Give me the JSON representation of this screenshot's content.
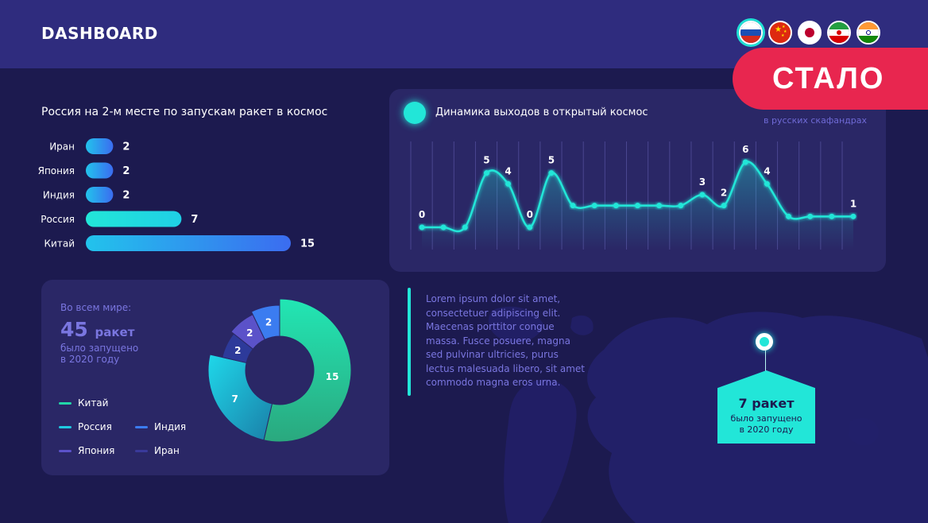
{
  "header": {
    "title": "DASHBOARD",
    "flags": [
      {
        "name": "russia-flag-icon",
        "active": true
      },
      {
        "name": "china-flag-icon",
        "active": false
      },
      {
        "name": "japan-flag-icon",
        "active": false
      },
      {
        "name": "iran-flag-icon",
        "active": false
      },
      {
        "name": "india-flag-icon",
        "active": false
      }
    ],
    "badge": "СТАЛО"
  },
  "colors": {
    "background": "#1c1a4f",
    "header": "#2f2c7e",
    "panel": "#2a2766",
    "accent_teal": "#22e6d8",
    "accent_blue": "#3b7cf0",
    "badge_red": "#e8264f",
    "muted_text": "#7a76e0"
  },
  "bar_section": {
    "title": "Россия на 2-м месте по запускам ракет в космос"
  },
  "line_section": {
    "title": "Динамика выходов в открытый космос",
    "subtitle_partial": "в русских скафандрах"
  },
  "donut_section": {
    "label": "Во всем мире:",
    "count": "45",
    "unit": "ракет",
    "desc_line1": "было запущено",
    "desc_line2": "в 2020 году",
    "legend": [
      "Китай",
      "Россия",
      "Индия",
      "Япония",
      "Иран"
    ]
  },
  "lorem": "Lorem ipsum dolor sit amet, consectetuer adipiscing elit. Maecenas porttitor congue massa. Fusce posuere, magna sed pulvinar ultricies, purus lectus malesuada libero, sit amet commodo magna eros urna.",
  "callout": {
    "count": "7 ракет",
    "desc_line1": "было запущено",
    "desc_line2": "в 2020 году"
  },
  "chart_data": [
    {
      "type": "bar",
      "orientation": "horizontal",
      "title": "Россия на 2-м месте по запускам ракет в космос",
      "categories": [
        "Иран",
        "Япония",
        "Индия",
        "Россия",
        "Китай"
      ],
      "values": [
        2,
        2,
        2,
        7,
        15
      ],
      "colors": [
        "#3b7cf0",
        "#3b7cf0",
        "#3b7cf0",
        "#22e6d8",
        "#3b7cf0"
      ]
    },
    {
      "type": "line",
      "title": "Динамика выходов в открытый космос",
      "x": [
        1,
        2,
        3,
        4,
        5,
        6,
        7,
        8,
        9,
        10,
        11,
        12,
        13,
        14,
        15,
        16,
        17,
        18,
        19,
        20,
        21
      ],
      "values": [
        0,
        0,
        0,
        5,
        4,
        0,
        5,
        2,
        2,
        2,
        2,
        2,
        2,
        3,
        2,
        6,
        4,
        1,
        1,
        1,
        1
      ],
      "labels": [
        "0",
        "",
        "",
        "5",
        "4",
        "0",
        "5",
        "",
        "",
        "",
        "",
        "",
        "",
        "3",
        "2",
        "6",
        "4",
        "",
        "",
        "",
        "1"
      ],
      "ylim": [
        0,
        6
      ],
      "grid": true
    },
    {
      "type": "pie",
      "style": "donut",
      "categories": [
        "Китай",
        "Россия",
        "Индия",
        "Япония",
        "Иран"
      ],
      "values": [
        15,
        7,
        2,
        2,
        2
      ],
      "labels": [
        "15",
        "7",
        "2",
        "2",
        "2"
      ],
      "colors": [
        "#22d6a8",
        "#1fc9e0",
        "#2d3a9a",
        "#5b52c9",
        "#3b7cf0"
      ]
    }
  ]
}
